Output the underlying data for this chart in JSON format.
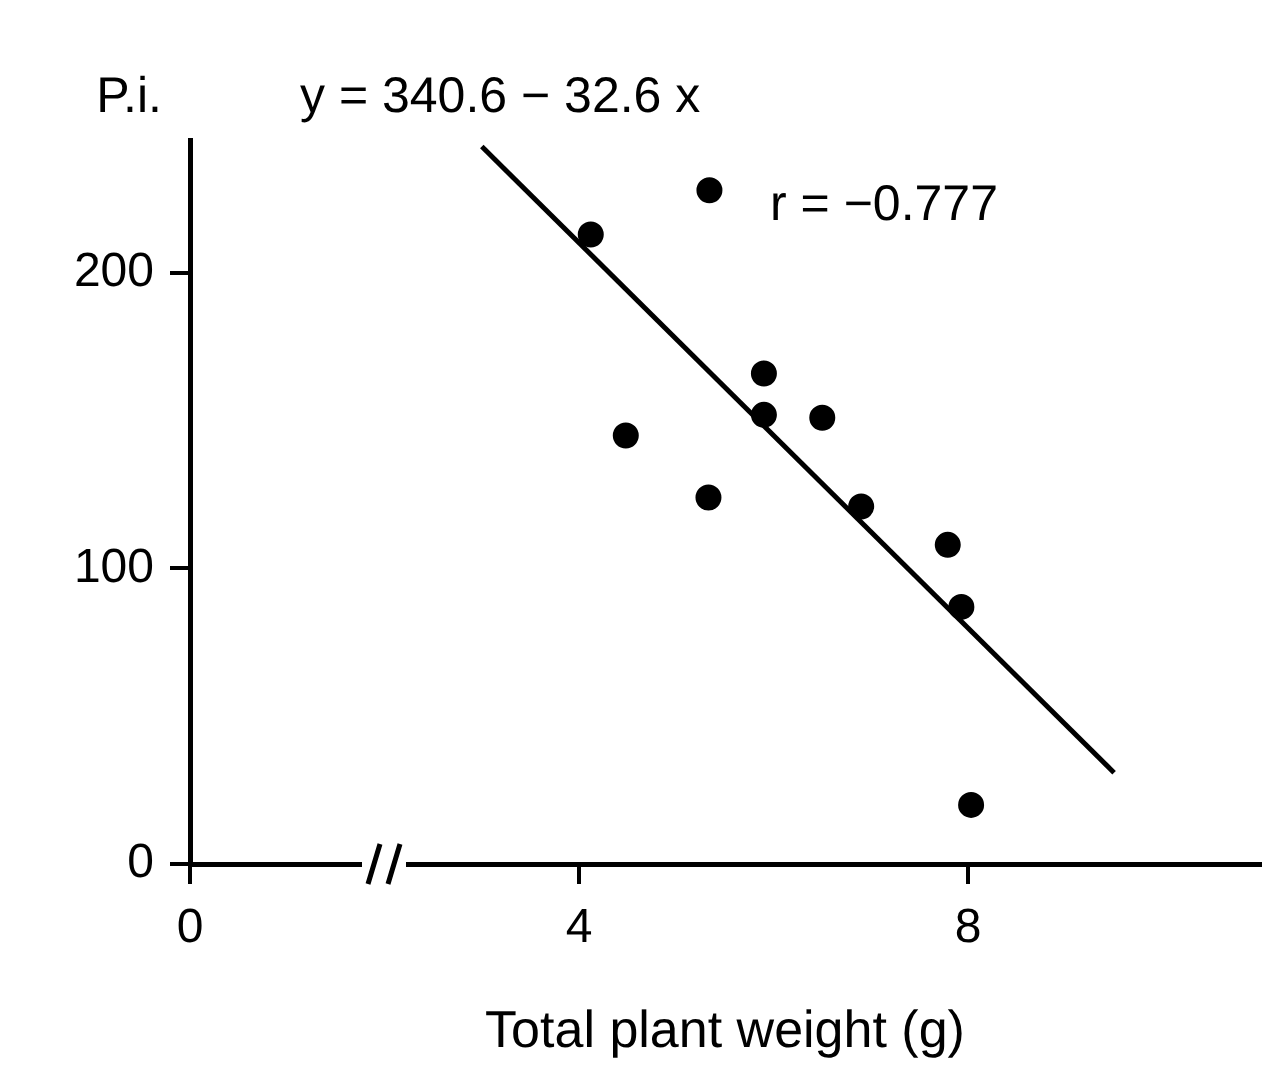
{
  "chart_data": {
    "type": "scatter",
    "xlabel": "Total plant weight (g)",
    "ylabel": "P.i.",
    "annotations": [
      "y = 340.6 − 32.6 x",
      "r = −0.777"
    ],
    "series": [
      {
        "type": "scatter",
        "color": "#000000",
        "marker": "circle",
        "x": [
          4.12,
          5.34,
          4.48,
          5.33,
          5.9,
          5.9,
          6.5,
          6.9,
          7.79,
          7.93,
          8.03
        ],
        "values": [
          213,
          228,
          145,
          124,
          166,
          152,
          151,
          121,
          108,
          87,
          20
        ]
      },
      {
        "type": "line",
        "color": "#000000",
        "marker": "none",
        "x": [
          3,
          9.5
        ],
        "values": [
          242.8,
          30.9
        ]
      }
    ],
    "xlim": [
      0,
      11
    ],
    "xticks": [
      0,
      4,
      8
    ],
    "ylim": [
      0,
      245
    ],
    "yticks": [
      0,
      100,
      200
    ],
    "grid": false
  }
}
